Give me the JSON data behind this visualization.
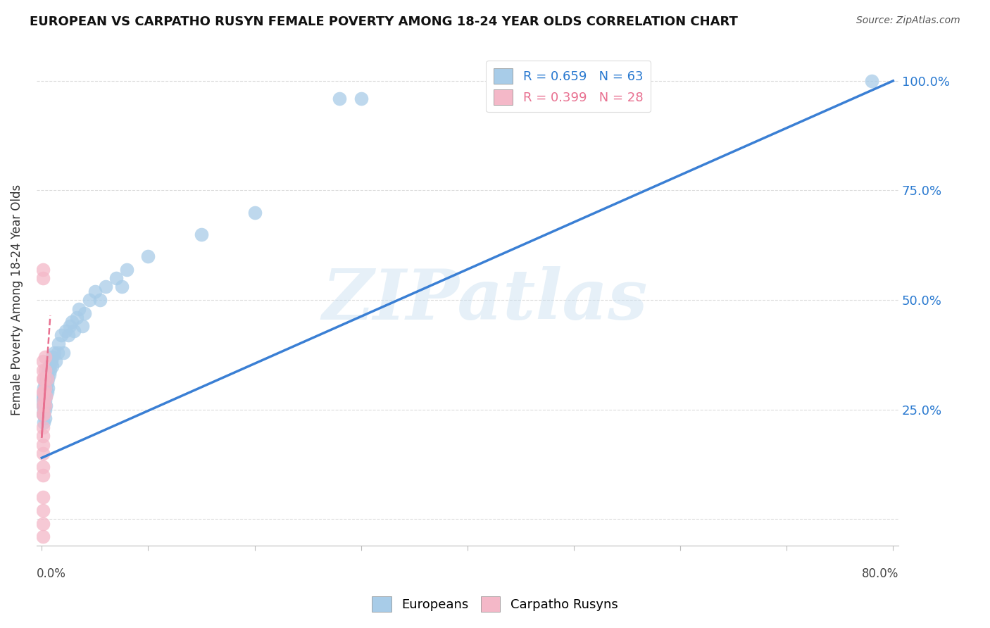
{
  "title": "EUROPEAN VS CARPATHO RUSYN FEMALE POVERTY AMONG 18-24 YEAR OLDS CORRELATION CHART",
  "source": "Source: ZipAtlas.com",
  "ylabel": "Female Poverty Among 18-24 Year Olds",
  "legend_eu_text": "R = 0.659   N = 63",
  "legend_cr_text": "R = 0.399   N = 28",
  "european_color": "#a8cce8",
  "carpatho_color": "#f4b8c8",
  "trendline_eu_color": "#3a7fd4",
  "trendline_cr_color": "#e87090",
  "watermark": "ZIPatlas",
  "background_color": "#ffffff",
  "grid_color": "#cccccc",
  "eu_legend_color": "#2979d0",
  "cr_legend_color": "#e87090",
  "european_points": [
    [
      0.001,
      0.24
    ],
    [
      0.001,
      0.26
    ],
    [
      0.001,
      0.27
    ],
    [
      0.001,
      0.28
    ],
    [
      0.002,
      0.22
    ],
    [
      0.002,
      0.24
    ],
    [
      0.002,
      0.25
    ],
    [
      0.002,
      0.26
    ],
    [
      0.002,
      0.27
    ],
    [
      0.002,
      0.28
    ],
    [
      0.002,
      0.29
    ],
    [
      0.002,
      0.3
    ],
    [
      0.003,
      0.23
    ],
    [
      0.003,
      0.25
    ],
    [
      0.003,
      0.27
    ],
    [
      0.003,
      0.29
    ],
    [
      0.003,
      0.31
    ],
    [
      0.004,
      0.26
    ],
    [
      0.004,
      0.28
    ],
    [
      0.004,
      0.3
    ],
    [
      0.004,
      0.32
    ],
    [
      0.005,
      0.29
    ],
    [
      0.005,
      0.31
    ],
    [
      0.005,
      0.33
    ],
    [
      0.006,
      0.3
    ],
    [
      0.006,
      0.32
    ],
    [
      0.006,
      0.34
    ],
    [
      0.007,
      0.33
    ],
    [
      0.007,
      0.35
    ],
    [
      0.008,
      0.34
    ],
    [
      0.009,
      0.36
    ],
    [
      0.01,
      0.35
    ],
    [
      0.01,
      0.37
    ],
    [
      0.012,
      0.38
    ],
    [
      0.013,
      0.36
    ],
    [
      0.015,
      0.38
    ],
    [
      0.016,
      0.4
    ],
    [
      0.018,
      0.42
    ],
    [
      0.02,
      0.38
    ],
    [
      0.022,
      0.43
    ],
    [
      0.025,
      0.42
    ],
    [
      0.026,
      0.44
    ],
    [
      0.028,
      0.45
    ],
    [
      0.03,
      0.43
    ],
    [
      0.033,
      0.46
    ],
    [
      0.035,
      0.48
    ],
    [
      0.038,
      0.44
    ],
    [
      0.04,
      0.47
    ],
    [
      0.045,
      0.5
    ],
    [
      0.05,
      0.52
    ],
    [
      0.055,
      0.5
    ],
    [
      0.06,
      0.53
    ],
    [
      0.07,
      0.55
    ],
    [
      0.075,
      0.53
    ],
    [
      0.08,
      0.57
    ],
    [
      0.1,
      0.6
    ],
    [
      0.15,
      0.65
    ],
    [
      0.2,
      0.7
    ],
    [
      0.28,
      0.96
    ],
    [
      0.3,
      0.96
    ],
    [
      0.43,
      0.98
    ],
    [
      0.48,
      0.97
    ],
    [
      0.78,
      1.0
    ]
  ],
  "carpatho_points": [
    [
      0.001,
      -0.04
    ],
    [
      0.001,
      -0.01
    ],
    [
      0.001,
      0.02
    ],
    [
      0.001,
      0.05
    ],
    [
      0.001,
      0.1
    ],
    [
      0.001,
      0.12
    ],
    [
      0.001,
      0.15
    ],
    [
      0.001,
      0.17
    ],
    [
      0.001,
      0.19
    ],
    [
      0.001,
      0.21
    ],
    [
      0.001,
      0.24
    ],
    [
      0.001,
      0.26
    ],
    [
      0.001,
      0.29
    ],
    [
      0.001,
      0.32
    ],
    [
      0.001,
      0.34
    ],
    [
      0.001,
      0.36
    ],
    [
      0.001,
      0.55
    ],
    [
      0.001,
      0.57
    ],
    [
      0.002,
      0.24
    ],
    [
      0.002,
      0.27
    ],
    [
      0.002,
      0.29
    ],
    [
      0.002,
      0.32
    ],
    [
      0.003,
      0.26
    ],
    [
      0.003,
      0.3
    ],
    [
      0.003,
      0.34
    ],
    [
      0.003,
      0.37
    ],
    [
      0.004,
      0.28
    ],
    [
      0.005,
      0.32
    ]
  ],
  "xlim": [
    0.0,
    0.8
  ],
  "ylim": [
    -0.06,
    1.06
  ],
  "yticks": [
    0.0,
    0.25,
    0.5,
    0.75,
    1.0
  ],
  "ytick_labels": [
    "",
    "25.0%",
    "50.0%",
    "75.0%",
    "100.0%"
  ]
}
